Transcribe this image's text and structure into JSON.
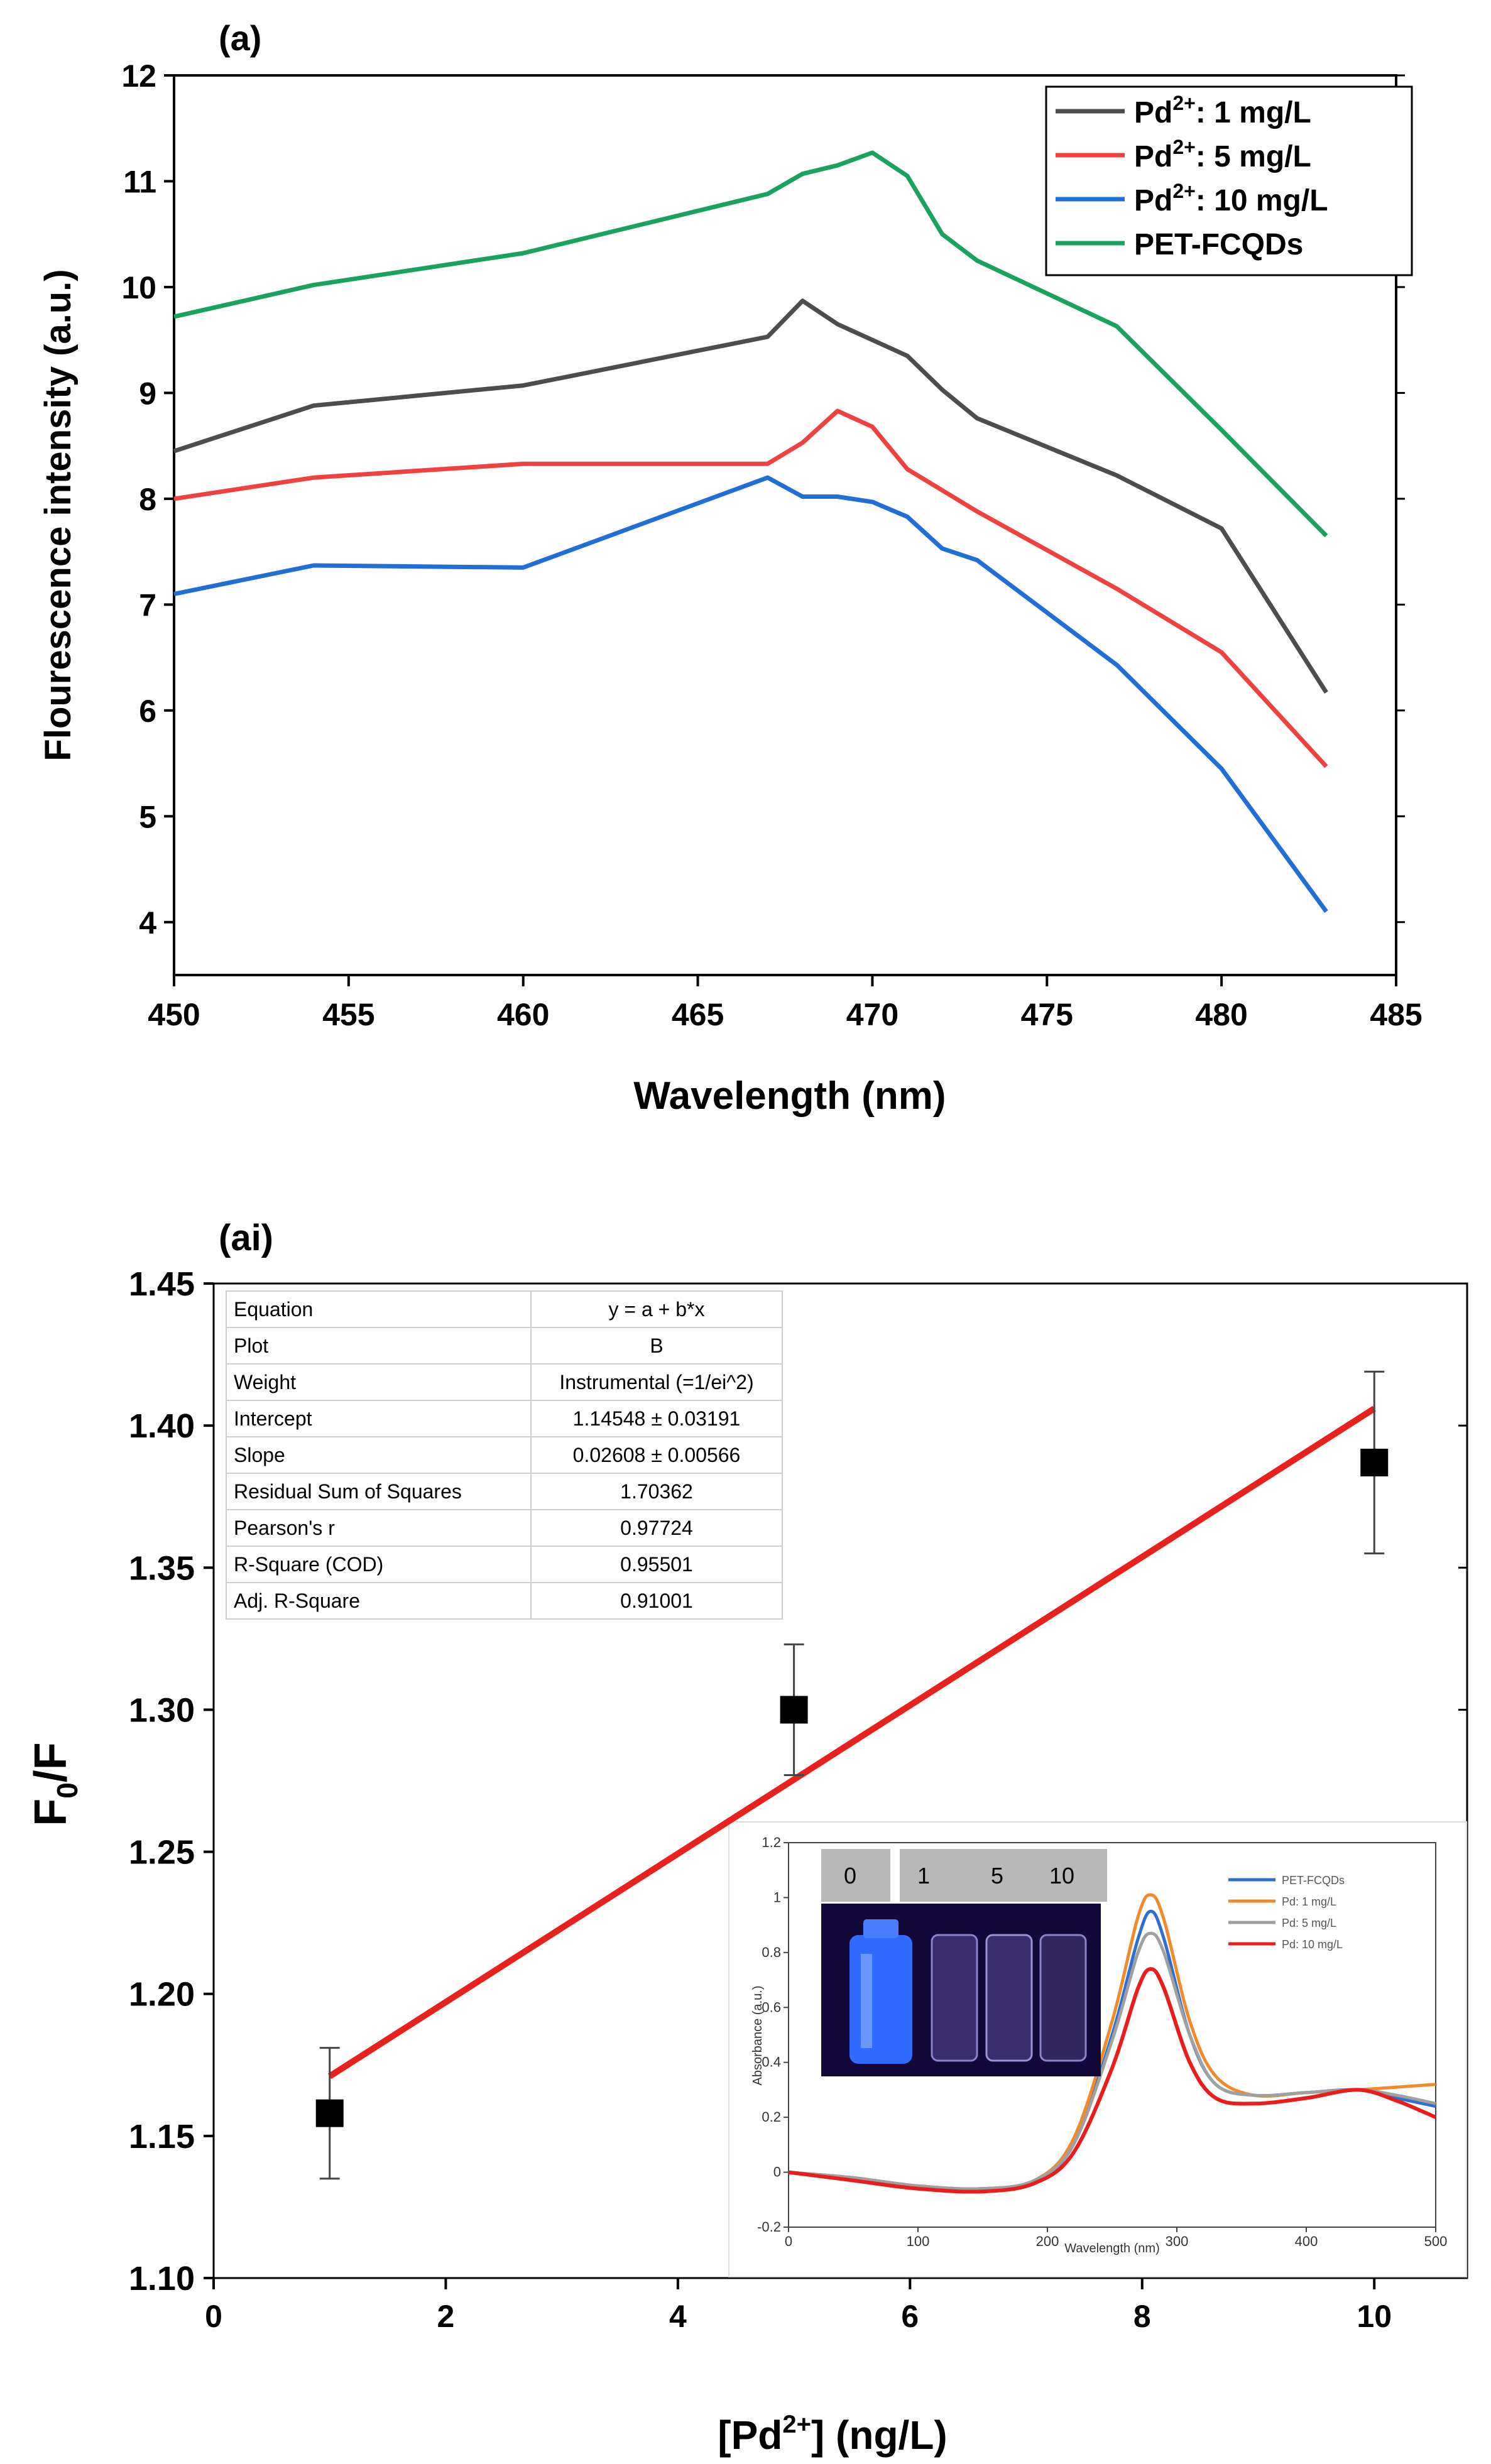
{
  "chart_data": [
    {
      "type": "line",
      "panel_label": "(a)",
      "xlabel": "Wavelength (nm)",
      "ylabel": "Flourescence intensity (a.u.)",
      "xlim": [
        450,
        485
      ],
      "ylim": [
        3.5,
        12
      ],
      "xticks": [
        "450",
        "455",
        "460",
        "465",
        "470",
        "475",
        "480",
        "485"
      ],
      "yticks": [
        "4",
        "5",
        "6",
        "7",
        "8",
        "9",
        "10",
        "11",
        "12"
      ],
      "legend_position": "top-right",
      "series": [
        {
          "name": "Pd",
          "sup": "2+",
          "suffix": ": 1 mg/L",
          "color": "#4d4d4d",
          "x": [
            450,
            454,
            460,
            467,
            468,
            469,
            471,
            472,
            473,
            477,
            480,
            483
          ],
          "y": [
            8.45,
            8.88,
            9.07,
            9.53,
            9.87,
            9.65,
            9.35,
            9.03,
            8.76,
            8.22,
            7.72,
            6.17
          ]
        },
        {
          "name": "Pd",
          "sup": "2+",
          "suffix": ": 5 mg/L",
          "color": "#f04040",
          "x": [
            450,
            454,
            460,
            467,
            468,
            469,
            470,
            471,
            473,
            477,
            480,
            483
          ],
          "y": [
            8.0,
            8.2,
            8.33,
            8.33,
            8.53,
            8.83,
            8.68,
            8.28,
            7.88,
            7.15,
            6.55,
            5.47
          ]
        },
        {
          "name": "Pd",
          "sup": "2+",
          "suffix": ": 10 mg/L",
          "color": "#1f6fd6",
          "x": [
            450,
            454,
            460,
            467,
            468,
            469,
            470,
            471,
            472,
            473,
            477,
            480,
            483
          ],
          "y": [
            7.1,
            7.37,
            7.35,
            8.2,
            8.02,
            8.02,
            7.97,
            7.83,
            7.53,
            7.42,
            6.43,
            5.45,
            4.1
          ]
        },
        {
          "name": "PET-FCQDs",
          "sup": "",
          "suffix": "",
          "color": "#1aa35e",
          "x": [
            450,
            454,
            460,
            467,
            468,
            469,
            470,
            471,
            472,
            473,
            477,
            480,
            483
          ],
          "y": [
            9.72,
            10.02,
            10.32,
            10.88,
            11.07,
            11.15,
            11.27,
            11.05,
            10.5,
            10.25,
            9.63,
            8.65,
            7.65
          ]
        }
      ]
    },
    {
      "type": "scatter",
      "panel_label": "(ai)",
      "xlabel": "[Pd2+] (ng/L)",
      "ylabel": "F0/F",
      "xlim": [
        0,
        10.8
      ],
      "ylim": [
        1.1,
        1.45
      ],
      "xticks": [
        "0",
        "2",
        "4",
        "6",
        "8",
        "10"
      ],
      "yticks": [
        "1.10",
        "1.15",
        "1.20",
        "1.25",
        "1.30",
        "1.35",
        "1.40",
        "1.45"
      ],
      "points": [
        {
          "x": 1,
          "y": 1.158,
          "err": 0.023
        },
        {
          "x": 5,
          "y": 1.3,
          "err": 0.023
        },
        {
          "x": 10,
          "y": 1.387,
          "err": 0.032
        }
      ],
      "fit": {
        "x": [
          1,
          10
        ],
        "y": [
          1.171,
          1.406
        ],
        "color": "#e8211c"
      },
      "fit_table": [
        [
          "Equation",
          "y = a + b*x"
        ],
        [
          "Plot",
          "B"
        ],
        [
          "Weight",
          "Instrumental (=1/ei^2)"
        ],
        [
          "Intercept",
          "1.14548 ± 0.03191"
        ],
        [
          "Slope",
          "0.02608 ± 0.00566"
        ],
        [
          "Residual Sum of Squares",
          "1.70362"
        ],
        [
          "Pearson's r",
          "0.97724"
        ],
        [
          "R-Square (COD)",
          "0.95501"
        ],
        [
          "Adj. R-Square",
          "0.91001"
        ]
      ],
      "inset": {
        "type": "line",
        "xlabel": "Wavelength (nm)",
        "ylabel": "Absorbance (a.u.)",
        "xlim": [
          0,
          500
        ],
        "ylim": [
          -0.2,
          1.2
        ],
        "xticks": [
          "0",
          "100",
          "200",
          "300",
          "400",
          "500"
        ],
        "yticks": [
          "-0.2",
          "0",
          "0.2",
          "0.4",
          "0.6",
          "0.8",
          "1",
          "1.2"
        ],
        "photo_labels": [
          "0",
          "1",
          "5",
          "10"
        ],
        "series": [
          {
            "name": "PET-FCQDs",
            "color": "#2f6fd0",
            "x": [
              0,
              50,
              100,
              150,
              190,
              220,
              250,
              270,
              280,
              290,
              310,
              330,
              360,
              400,
              440,
              470,
              500
            ],
            "y": [
              0,
              -0.02,
              -0.05,
              -0.06,
              -0.03,
              0.1,
              0.5,
              0.85,
              0.95,
              0.85,
              0.5,
              0.32,
              0.28,
              0.29,
              0.3,
              0.27,
              0.24
            ]
          },
          {
            "name": "Pd: 1 mg/L",
            "color": "#f08a2a",
            "x": [
              0,
              50,
              100,
              150,
              190,
              220,
              250,
              270,
              280,
              290,
              310,
              330,
              360,
              400,
              440,
              470,
              500
            ],
            "y": [
              0,
              -0.02,
              -0.05,
              -0.06,
              -0.03,
              0.12,
              0.55,
              0.93,
              1.01,
              0.92,
              0.55,
              0.35,
              0.28,
              0.29,
              0.3,
              0.31,
              0.32
            ]
          },
          {
            "name": "Pd: 5 mg/L",
            "color": "#a0a0a0",
            "x": [
              0,
              50,
              100,
              150,
              190,
              220,
              250,
              270,
              280,
              290,
              310,
              330,
              360,
              400,
              440,
              470,
              500
            ],
            "y": [
              0,
              -0.02,
              -0.05,
              -0.06,
              -0.03,
              0.1,
              0.48,
              0.8,
              0.87,
              0.8,
              0.5,
              0.32,
              0.28,
              0.29,
              0.3,
              0.28,
              0.25
            ]
          },
          {
            "name": "Pd: 10 mg/L",
            "color": "#ea1c1c",
            "x": [
              0,
              50,
              100,
              150,
              190,
              220,
              250,
              270,
              280,
              290,
              310,
              330,
              360,
              400,
              440,
              470,
              500
            ],
            "y": [
              0,
              -0.03,
              -0.06,
              -0.07,
              -0.04,
              0.07,
              0.38,
              0.67,
              0.74,
              0.67,
              0.4,
              0.27,
              0.25,
              0.27,
              0.3,
              0.26,
              0.2
            ]
          }
        ]
      }
    }
  ]
}
